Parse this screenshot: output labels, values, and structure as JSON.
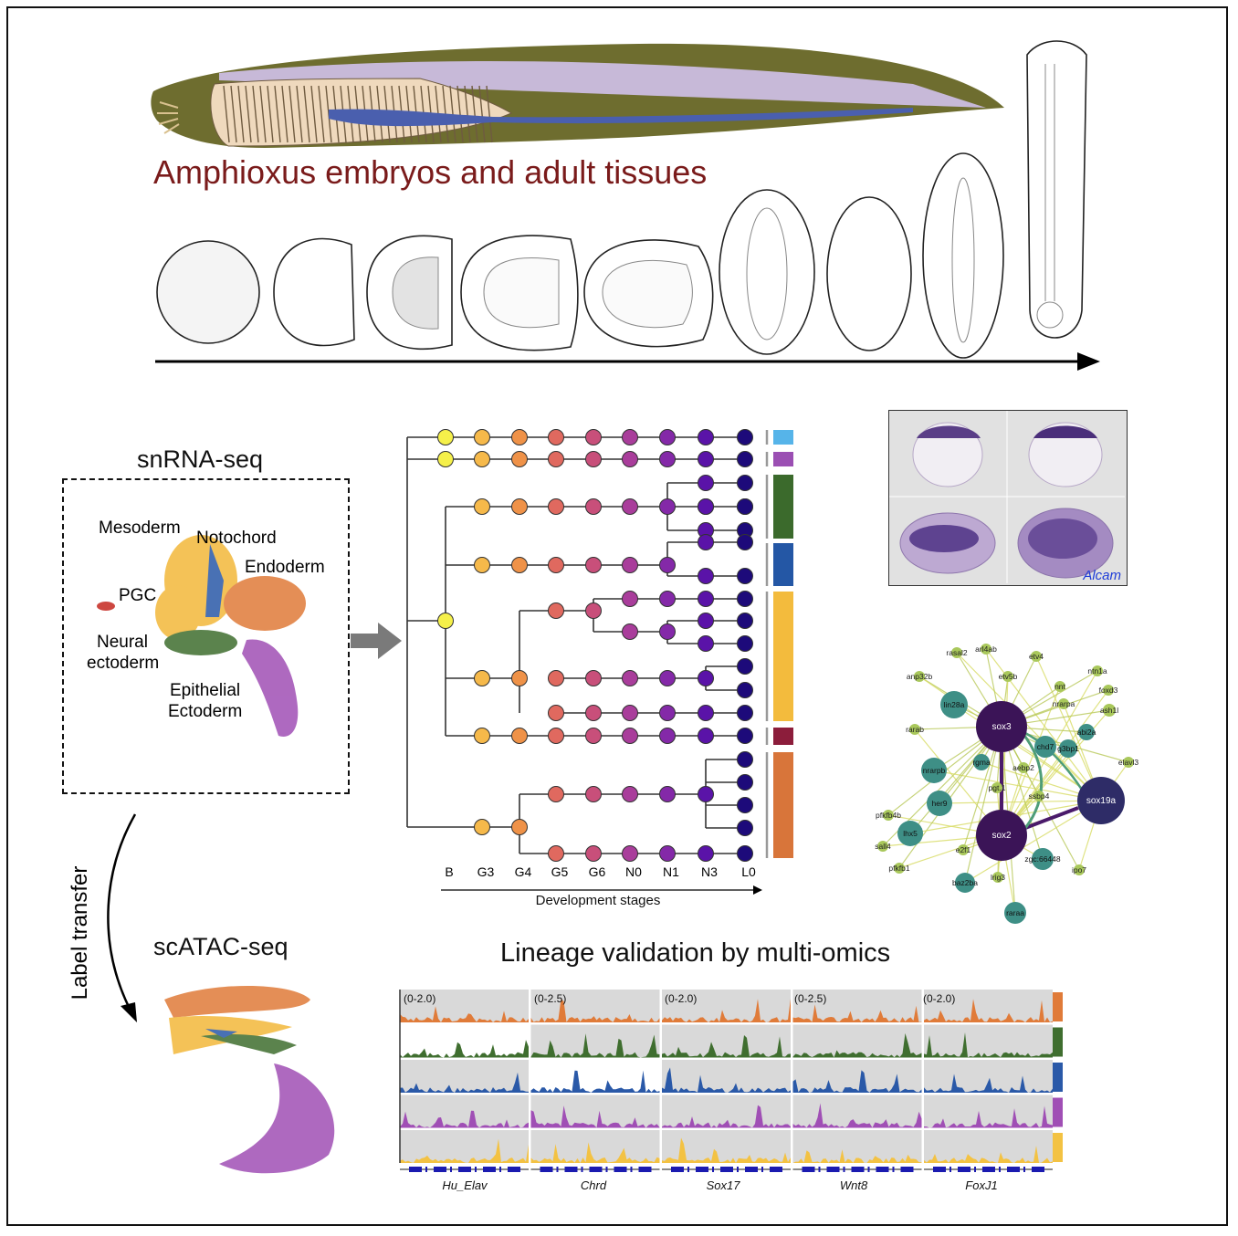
{
  "header": {
    "title": "Amphioxus embryos and adult tissues"
  },
  "umap": {
    "snrna_title": "snRNA-seq",
    "scatac_title": "scATAC-seq",
    "arrow_label": "Label transfer",
    "labels": [
      {
        "text": "Mesoderm",
        "color": "#f3b83a"
      },
      {
        "text": "Notochord",
        "color": "#2a59a8"
      },
      {
        "text": "Endoderm",
        "color": "#e07b39"
      },
      {
        "text": "PGC",
        "color": "#5ab4e5"
      },
      {
        "text": "Neural",
        "color": "#3f6e2f"
      },
      {
        "text": "ectoderm",
        "color": "#3f6e2f"
      },
      {
        "text": "Epithelial",
        "color": "#a04fb5"
      },
      {
        "text": "Ectoderm",
        "color": "#a04fb5"
      }
    ]
  },
  "lineage_tree": {
    "stages": [
      "B",
      "G3",
      "G4",
      "G5",
      "G6",
      "N0",
      "N1",
      "N3",
      "L0"
    ],
    "axis_label": "Development stages",
    "stage_colors": [
      "#f5f04a",
      "#f6b94a",
      "#ef9248",
      "#e0695f",
      "#c84f7a",
      "#a93d9b",
      "#8429a8",
      "#5a13a8",
      "#1d0a7a"
    ],
    "bar_colors": [
      "#56b4e9",
      "#9b4fb3",
      "#3b6a2c",
      "#2457a5",
      "#f3bb3d",
      "#8c1d3b",
      "#d8753a"
    ]
  },
  "ish_image": {
    "gene": "Alcam"
  },
  "network": {
    "hubs": [
      "sox3",
      "sox2",
      "sox19a"
    ],
    "teal_nodes": [
      "lin28a",
      "chd7",
      "nrarpb",
      "her9",
      "lhx5",
      "abi2a",
      "g3bp1",
      "rgma",
      "zgc:66448",
      "baz2ba",
      "raraa"
    ],
    "small_nodes": [
      "rasal2",
      "arl4ab",
      "etv4",
      "anp32b",
      "etv5b",
      "nnt",
      "ntn1a",
      "foxd3",
      "nrarpa",
      "ash1l",
      "rarab",
      "elavl3",
      "aebp2",
      "pgt.1",
      "ssbp4",
      "pfkfb4b",
      "sall4",
      "pfkfb1",
      "e2f1",
      "ipo7",
      "lrig3"
    ]
  },
  "multiomics": {
    "title": "Lineage validation by multi-omics",
    "scales": [
      "(0-2.0)",
      "(0-2.5)",
      "(0-2.0)",
      "(0-2.5)",
      "(0-2.0)"
    ],
    "genes": [
      "Hu_Elav",
      "Chrd",
      "Sox17",
      "Wnt8",
      "FoxJ1"
    ],
    "row_colors": [
      "#e07b39",
      "#3f6e2f",
      "#2a59a8",
      "#a04fb5",
      "#f3c243"
    ]
  }
}
